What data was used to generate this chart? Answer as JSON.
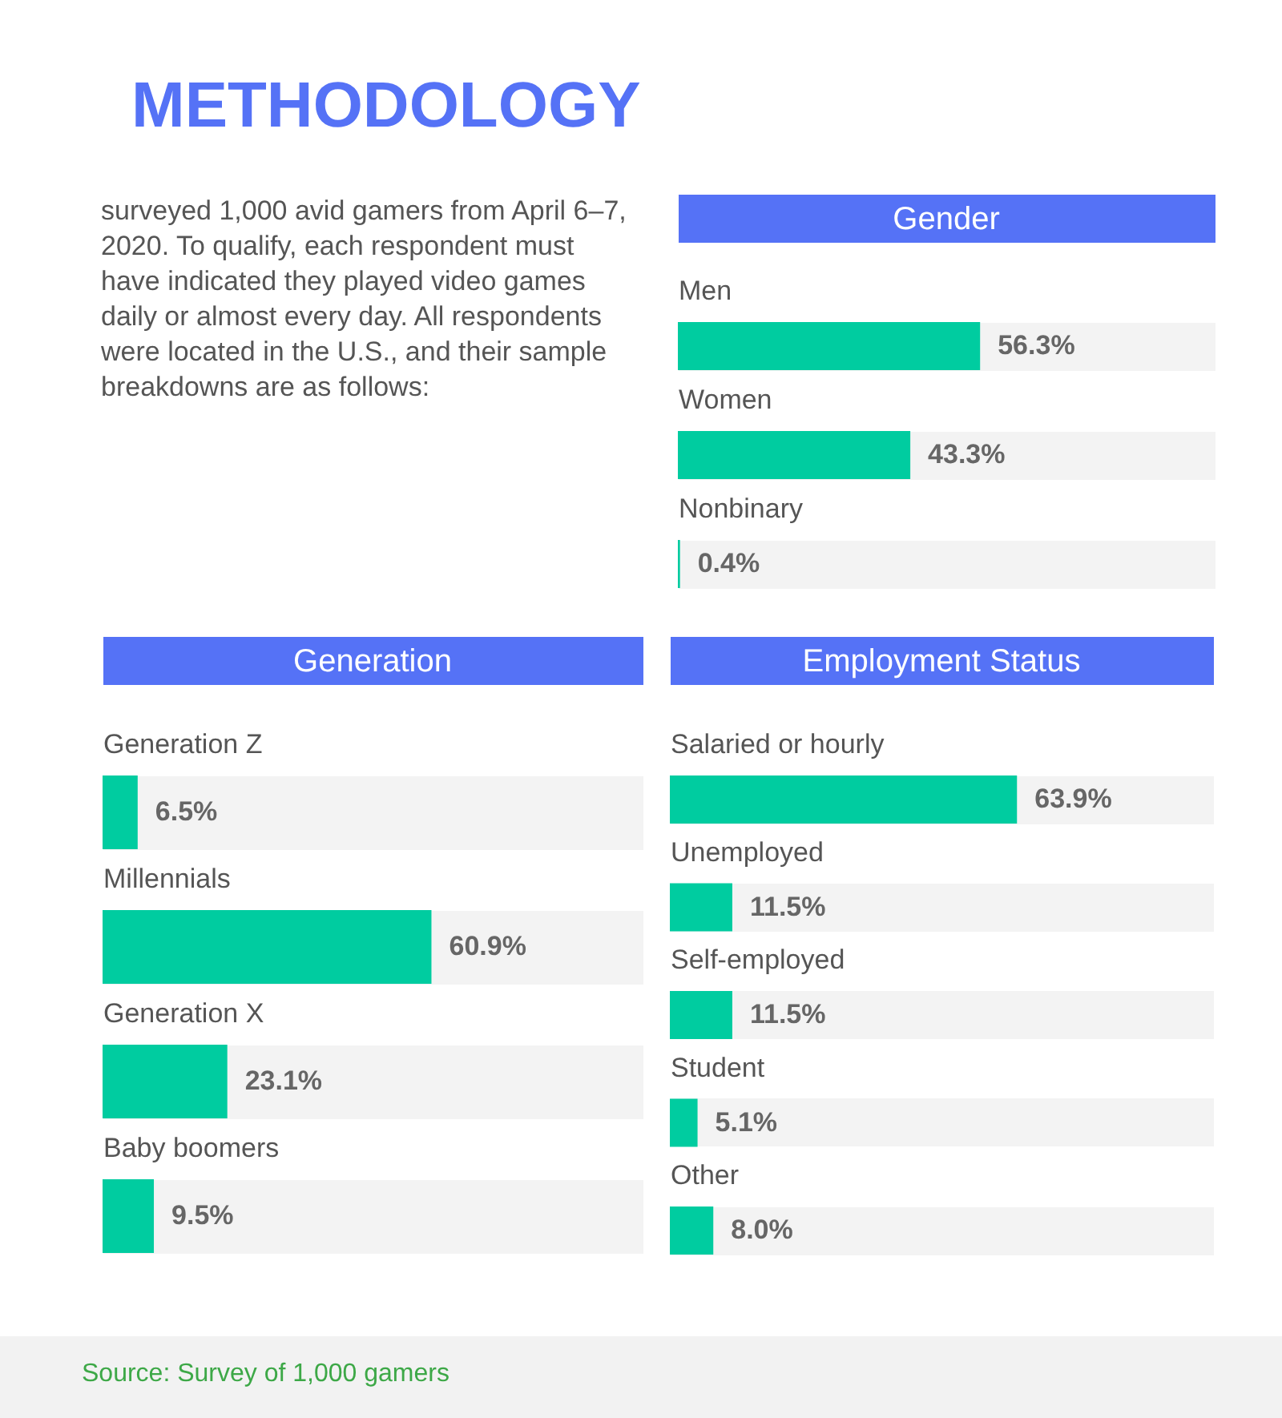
{
  "chart_data": [
    {
      "type": "other",
      "title": "METHODOLOGY",
      "annotations": [
        "surveyed 1,000 avid gamers from April 6–7, 2020. To qualify, each respondent must have indicated they played video games daily or almost every day. All respondents were located in the U.S., and their sample breakdowns are as follows:"
      ]
    },
    {
      "type": "bar",
      "orientation": "horizontal",
      "title": "Gender",
      "categories": [
        "Men",
        "Women",
        "Nonbinary"
      ],
      "values": [
        56.3,
        43.3,
        0.4
      ],
      "value_labels": [
        "56.3%",
        "43.3%",
        "0.4%"
      ],
      "color": "#00cca0",
      "xlim": [
        0,
        100
      ],
      "grid": "y",
      "tick_labels": "y"
    },
    {
      "type": "bar",
      "orientation": "horizontal",
      "title": "Generation",
      "categories": [
        "Generation Z",
        "Millennials",
        "Generation X",
        "Baby boomers"
      ],
      "values": [
        6.5,
        60.9,
        23.1,
        9.5
      ],
      "value_labels": [
        "6.5%",
        "60.9%",
        "23.1%",
        "9.5%"
      ],
      "color": "#00cca0",
      "xlim": [
        0,
        100
      ],
      "grid": "y",
      "tick_labels": "y"
    },
    {
      "type": "bar",
      "orientation": "horizontal",
      "title": "Employment Status",
      "categories": [
        "Salaried or hourly",
        "Unemployed",
        "Self-employed",
        "Student",
        "Other"
      ],
      "values": [
        63.9,
        11.5,
        11.5,
        5.1,
        8.0
      ],
      "value_labels": [
        "63.9%",
        "11.5%",
        "11.5%",
        "5.1%",
        "8.0%"
      ],
      "color": "#00cca0",
      "xlim": [
        0,
        100
      ],
      "grid": "y",
      "tick_labels": "y"
    },
    {
      "type": "other",
      "annotations": [
        "Source: Survey of 1,000 gamers"
      ]
    }
  ]
}
